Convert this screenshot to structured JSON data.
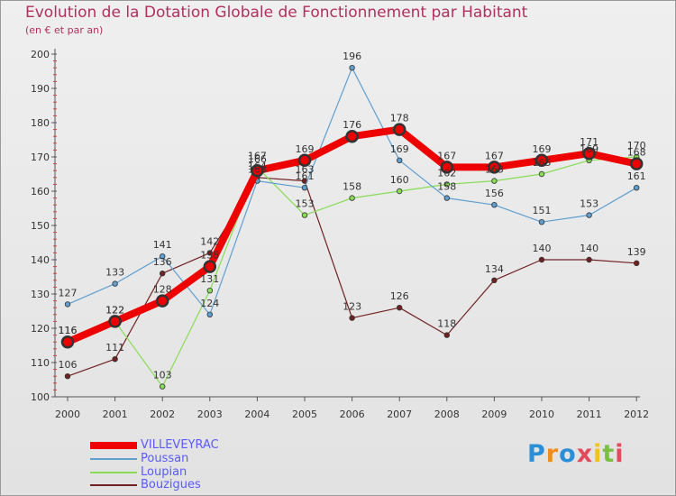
{
  "title": "Evolution de la Dotation Globale de Fonctionnement par Habitant",
  "subtitle": "(en € et par an)",
  "logo_text": "Proxiti",
  "logo_colors": [
    "#2a8fd6",
    "#f28c1e",
    "#2a8fd6",
    "#e34b5c",
    "#f2c21e",
    "#7ac142",
    "#e34b5c"
  ],
  "chart_data": {
    "type": "line",
    "title": "Evolution de la Dotation Globale de Fonctionnement par Habitant",
    "subtitle": "(en € et par an)",
    "xlabel": "",
    "ylabel": "",
    "categories": [
      "2000",
      "2001",
      "2002",
      "2003",
      "2004",
      "2005",
      "2006",
      "2007",
      "2008",
      "2009",
      "2010",
      "2011",
      "2012"
    ],
    "ylim": [
      100,
      200
    ],
    "yticks": [
      100,
      110,
      120,
      130,
      140,
      150,
      160,
      170,
      180,
      190,
      200
    ],
    "grid": false,
    "legend_position": "bottom-left",
    "series": [
      {
        "name": "VILLEVEYRAC",
        "color": "#ee0000",
        "values": [
          116,
          122,
          128,
          138,
          166,
          169,
          176,
          178,
          167,
          167,
          169,
          171,
          168
        ]
      },
      {
        "name": "Poussan",
        "color": "#5f9fd0",
        "values": [
          127,
          133,
          141,
          124,
          163,
          161,
          196,
          169,
          158,
          156,
          151,
          153,
          161
        ]
      },
      {
        "name": "Loupian",
        "color": "#88dd55",
        "values": [
          116,
          122,
          103,
          131,
          167,
          153,
          158,
          160,
          162,
          163,
          165,
          169,
          170
        ]
      },
      {
        "name": "Bouzigues",
        "color": "#702222",
        "values": [
          106,
          111,
          136,
          142,
          164,
          163,
          123,
          126,
          118,
          134,
          140,
          140,
          139
        ]
      }
    ]
  }
}
